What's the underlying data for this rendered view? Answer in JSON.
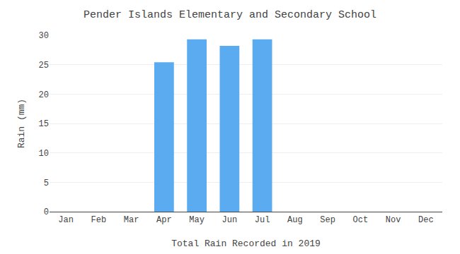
{
  "chart_data": {
    "type": "bar",
    "title": "Pender Islands Elementary and Secondary School",
    "xlabel": "Total Rain Recorded in 2019",
    "ylabel": "Rain (mm)",
    "categories": [
      "Jan",
      "Feb",
      "Mar",
      "Apr",
      "May",
      "Jun",
      "Jul",
      "Aug",
      "Sep",
      "Oct",
      "Nov",
      "Dec"
    ],
    "values": [
      0,
      0,
      0,
      25.4,
      29.3,
      28.2,
      29.3,
      0,
      0,
      0,
      0,
      0
    ],
    "color": "#5aabf0",
    "ylim": [
      0,
      30
    ],
    "yticks": [
      0,
      5,
      10,
      15,
      20,
      25,
      30
    ],
    "grid": true
  }
}
